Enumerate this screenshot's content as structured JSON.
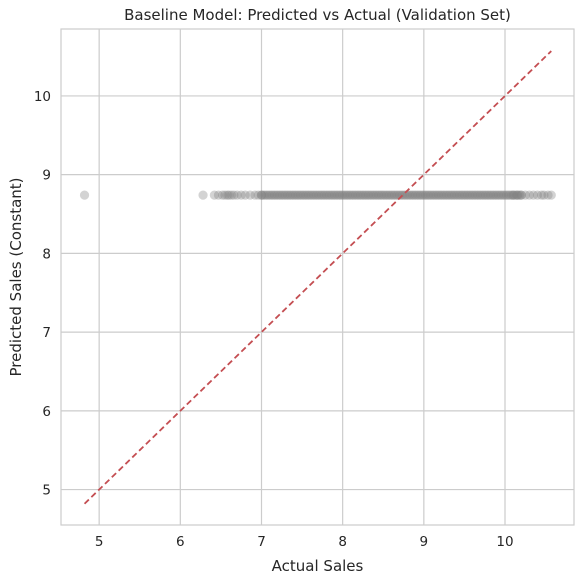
{
  "chart_data": {
    "type": "scatter",
    "title": "Baseline Model: Predicted vs Actual (Validation Set)",
    "xlabel": "Actual Sales",
    "ylabel": "Predicted Sales (Constant)",
    "xlim": [
      4.53,
      10.85
    ],
    "ylim": [
      4.55,
      10.85
    ],
    "xticks": [
      5,
      6,
      7,
      8,
      9,
      10
    ],
    "yticks": [
      5,
      6,
      7,
      8,
      9,
      10
    ],
    "grid": true,
    "legend": "none",
    "series": [
      {
        "kind": "points",
        "constant_y": 8.74,
        "color": "#808080",
        "alpha": 0.35,
        "x": [
          4.82,
          6.28,
          6.42,
          6.47,
          6.52,
          6.55,
          6.58,
          6.6,
          6.63,
          6.66,
          6.7,
          6.75,
          6.8,
          6.86,
          6.92,
          6.96,
          7.0,
          10.1,
          10.15,
          10.2,
          10.25,
          10.3,
          10.35,
          10.4,
          10.45,
          10.48,
          10.53,
          10.57
        ],
        "dense_range": [
          7.0,
          10.2
        ]
      },
      {
        "kind": "reference_line",
        "style": "dashed",
        "color": "#c44e52",
        "x": [
          4.82,
          10.57
        ],
        "y": [
          4.82,
          10.57
        ]
      }
    ]
  }
}
